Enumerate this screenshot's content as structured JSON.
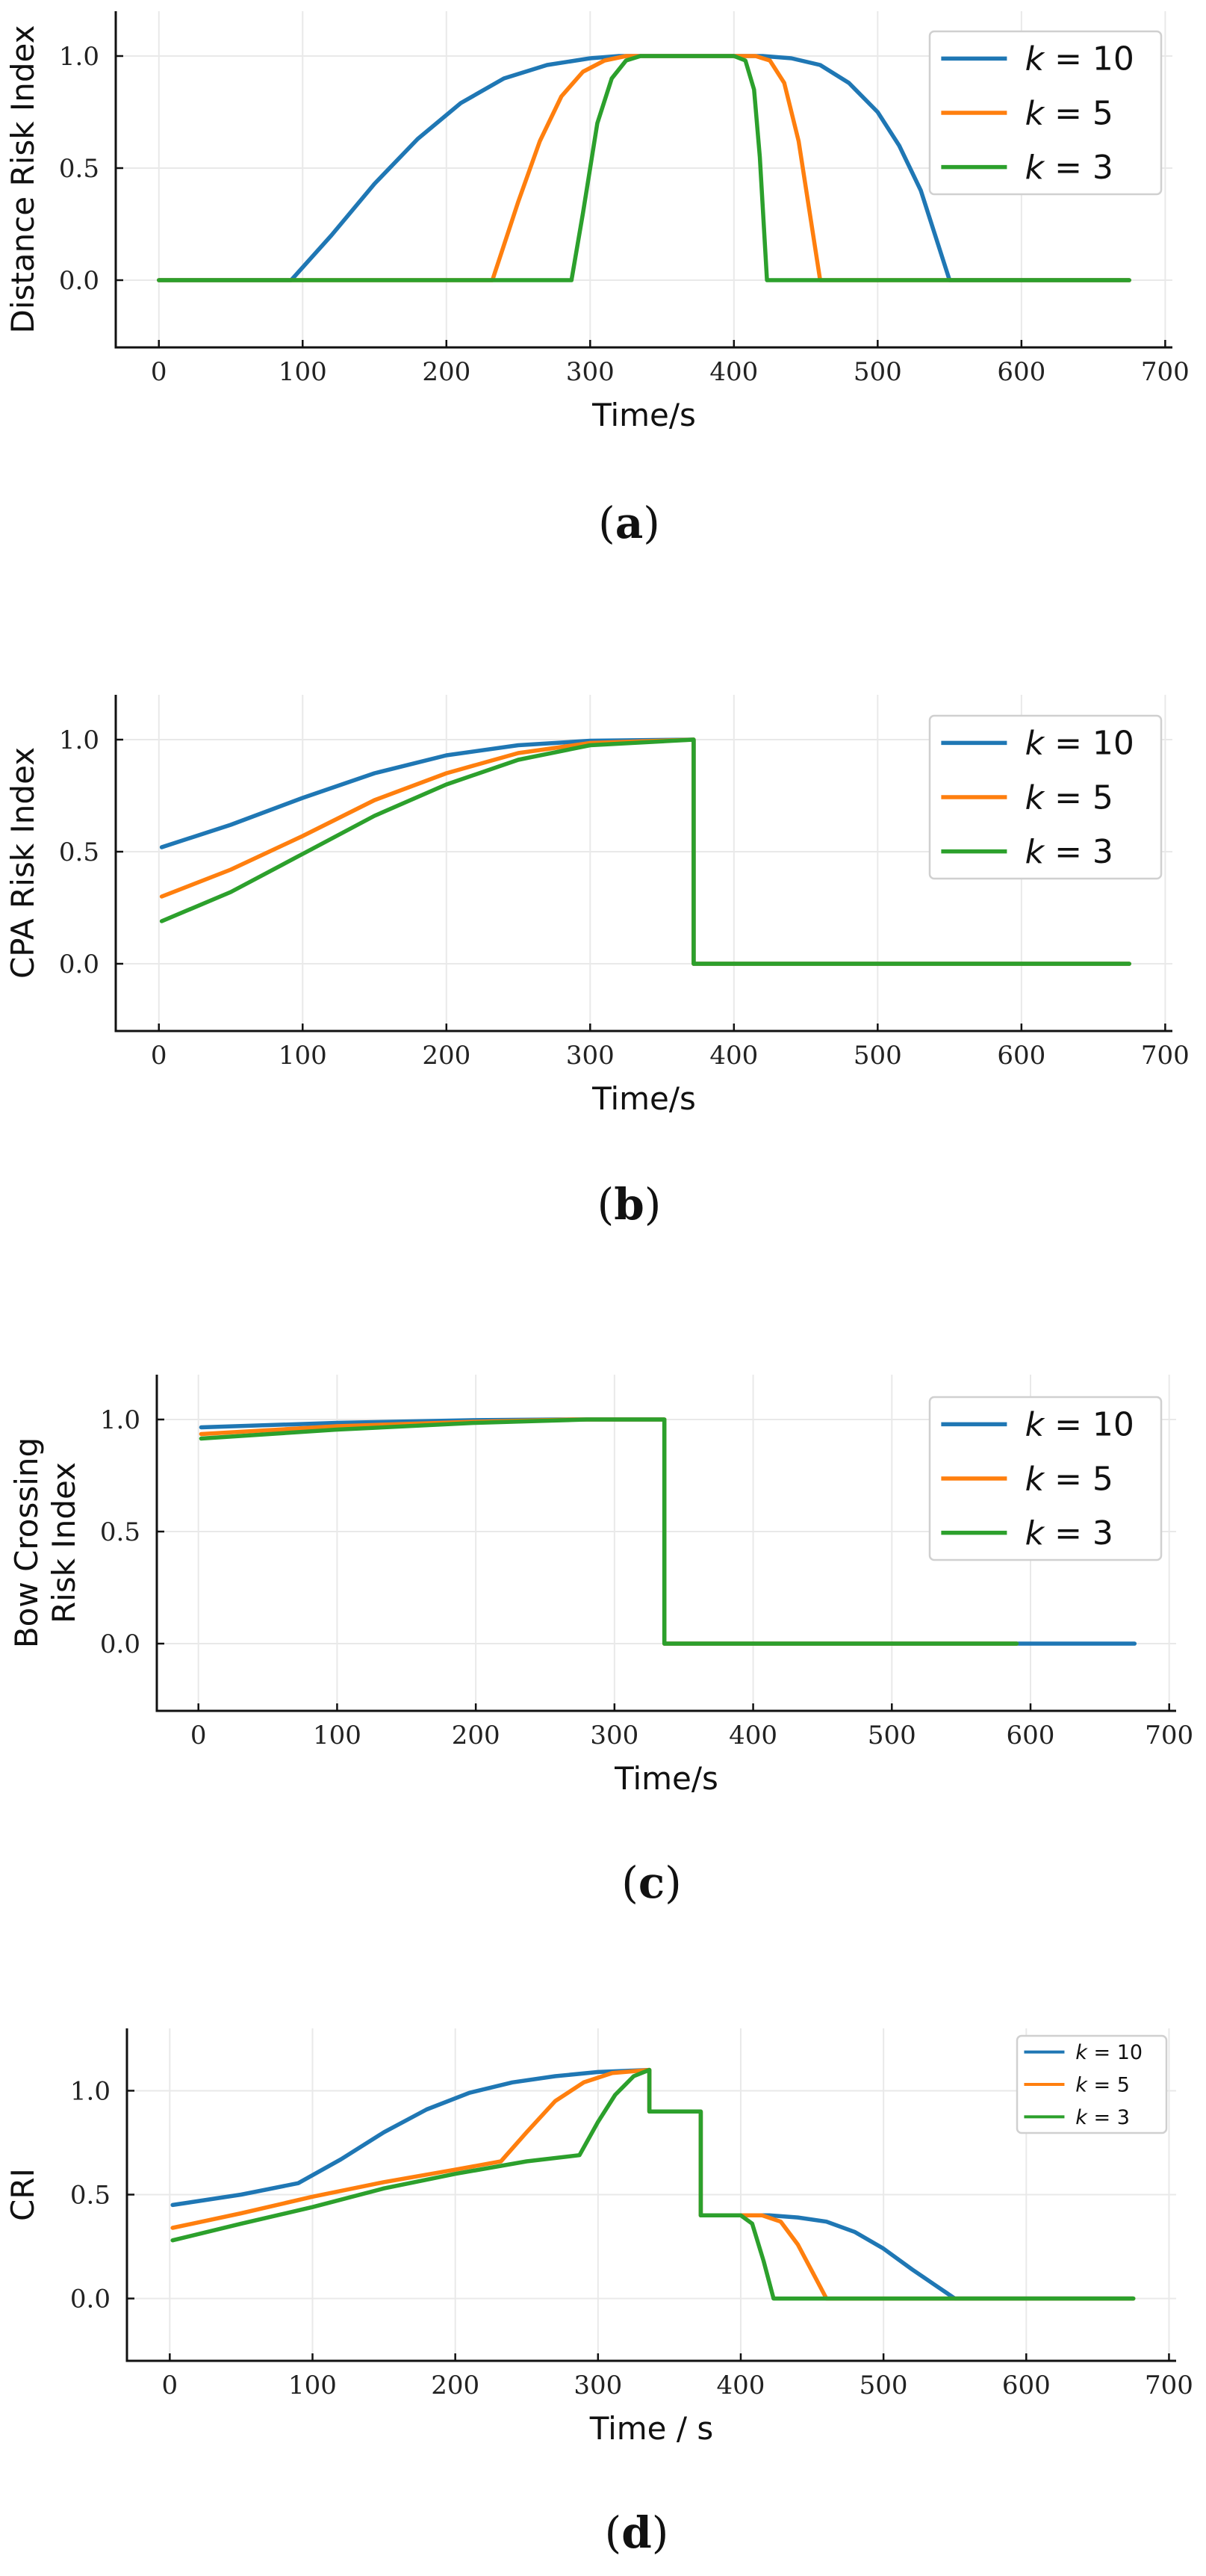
{
  "chart_data": [
    {
      "id": "a",
      "type": "line",
      "caption_letter": "a",
      "caption_open": "(",
      "caption_close": ")",
      "xlabel": "Time/s",
      "ylabel_lines": [
        "Distance Risk Index"
      ],
      "xlim": [
        -30,
        705
      ],
      "ylim": [
        -0.3,
        1.2
      ],
      "xticks": [
        0,
        100,
        200,
        300,
        400,
        500,
        600,
        700
      ],
      "yticks": [
        0.0,
        0.5,
        1.0
      ],
      "ytick_labels": [
        "0.0",
        "0.5",
        "1.0"
      ],
      "legend_position": "top-right",
      "series": [
        {
          "name": "k = 10",
          "label_k": "k",
          "label_eq": "=",
          "label_val": "10",
          "color": "#1f77b4",
          "points": [
            [
              0,
              0
            ],
            [
              92,
              0
            ],
            [
              120,
              0.2
            ],
            [
              150,
              0.43
            ],
            [
              180,
              0.63
            ],
            [
              210,
              0.79
            ],
            [
              240,
              0.9
            ],
            [
              270,
              0.96
            ],
            [
              300,
              0.99
            ],
            [
              320,
              1.0
            ],
            [
              420,
              1.0
            ],
            [
              440,
              0.99
            ],
            [
              460,
              0.96
            ],
            [
              480,
              0.88
            ],
            [
              500,
              0.75
            ],
            [
              515,
              0.6
            ],
            [
              530,
              0.4
            ],
            [
              550,
              0
            ],
            [
              675,
              0
            ]
          ]
        },
        {
          "name": "k = 5",
          "label_k": "k",
          "label_eq": "=",
          "label_val": "5",
          "color": "#ff7f0e",
          "points": [
            [
              0,
              0
            ],
            [
              232,
              0
            ],
            [
              250,
              0.35
            ],
            [
              265,
              0.62
            ],
            [
              280,
              0.82
            ],
            [
              295,
              0.93
            ],
            [
              310,
              0.98
            ],
            [
              325,
              1.0
            ],
            [
              415,
              1.0
            ],
            [
              425,
              0.98
            ],
            [
              435,
              0.88
            ],
            [
              445,
              0.62
            ],
            [
              460,
              0
            ],
            [
              675,
              0
            ]
          ]
        },
        {
          "name": "k = 3",
          "label_k": "k",
          "label_eq": "=",
          "label_val": "3",
          "color": "#2ca02c",
          "points": [
            [
              0,
              0
            ],
            [
              287,
              0
            ],
            [
              295,
              0.3
            ],
            [
              305,
              0.7
            ],
            [
              315,
              0.9
            ],
            [
              325,
              0.98
            ],
            [
              335,
              1.0
            ],
            [
              400,
              1.0
            ],
            [
              408,
              0.98
            ],
            [
              414,
              0.85
            ],
            [
              418,
              0.55
            ],
            [
              423,
              0
            ],
            [
              675,
              0
            ]
          ]
        }
      ]
    },
    {
      "id": "b",
      "type": "line",
      "caption_letter": "b",
      "caption_open": "(",
      "caption_close": ")",
      "xlabel": "Time/s",
      "ylabel_lines": [
        "CPA Risk Index"
      ],
      "xlim": [
        -30,
        705
      ],
      "ylim": [
        -0.3,
        1.2
      ],
      "xticks": [
        0,
        100,
        200,
        300,
        400,
        500,
        600,
        700
      ],
      "yticks": [
        0.0,
        0.5,
        1.0
      ],
      "ytick_labels": [
        "0.0",
        "0.5",
        "1.0"
      ],
      "legend_position": "top-right",
      "series": [
        {
          "name": "k = 10",
          "label_k": "k",
          "label_eq": "=",
          "label_val": "10",
          "color": "#1f77b4",
          "points": [
            [
              2,
              0.52
            ],
            [
              50,
              0.62
            ],
            [
              100,
              0.74
            ],
            [
              150,
              0.85
            ],
            [
              200,
              0.93
            ],
            [
              250,
              0.975
            ],
            [
              300,
              0.995
            ],
            [
              372,
              1.0
            ],
            [
              372,
              0
            ],
            [
              675,
              0
            ]
          ]
        },
        {
          "name": "k = 5",
          "label_k": "k",
          "label_eq": "=",
          "label_val": "5",
          "color": "#ff7f0e",
          "points": [
            [
              2,
              0.3
            ],
            [
              50,
              0.42
            ],
            [
              100,
              0.57
            ],
            [
              150,
              0.73
            ],
            [
              200,
              0.85
            ],
            [
              250,
              0.94
            ],
            [
              300,
              0.985
            ],
            [
              372,
              1.0
            ],
            [
              372,
              0
            ],
            [
              675,
              0
            ]
          ]
        },
        {
          "name": "k = 3",
          "label_k": "k",
          "label_eq": "=",
          "label_val": "3",
          "color": "#2ca02c",
          "points": [
            [
              2,
              0.19
            ],
            [
              50,
              0.32
            ],
            [
              100,
              0.49
            ],
            [
              150,
              0.66
            ],
            [
              200,
              0.8
            ],
            [
              250,
              0.91
            ],
            [
              300,
              0.975
            ],
            [
              372,
              1.0
            ],
            [
              372,
              0
            ],
            [
              675,
              0
            ]
          ]
        }
      ]
    },
    {
      "id": "c",
      "type": "line",
      "caption_letter": "c",
      "caption_open": "(",
      "caption_close": ")",
      "xlabel": "Time/s",
      "ylabel_lines": [
        "Bow Crossing",
        "Risk Index"
      ],
      "xlim": [
        -30,
        705
      ],
      "ylim": [
        -0.3,
        1.2
      ],
      "xticks": [
        0,
        100,
        200,
        300,
        400,
        500,
        600,
        700
      ],
      "yticks": [
        0.0,
        0.5,
        1.0
      ],
      "ytick_labels": [
        "0.0",
        "0.5",
        "1.0"
      ],
      "legend_position": "top-right",
      "series": [
        {
          "name": "k = 10",
          "label_k": "k",
          "label_eq": "=",
          "label_val": "10",
          "color": "#1f77b4",
          "points": [
            [
              2,
              0.965
            ],
            [
              100,
              0.985
            ],
            [
              200,
              0.997
            ],
            [
              260,
              1.0
            ],
            [
              336,
              1.0
            ],
            [
              336,
              0
            ],
            [
              675,
              0
            ]
          ]
        },
        {
          "name": "k = 5",
          "label_k": "k",
          "label_eq": "=",
          "label_val": "5",
          "color": "#ff7f0e",
          "points": [
            [
              2,
              0.935
            ],
            [
              100,
              0.97
            ],
            [
              200,
              0.99
            ],
            [
              270,
              1.0
            ],
            [
              336,
              1.0
            ],
            [
              336,
              0
            ],
            [
              590,
              0
            ]
          ]
        },
        {
          "name": "k = 3",
          "label_k": "k",
          "label_eq": "=",
          "label_val": "3",
          "color": "#2ca02c",
          "points": [
            [
              2,
              0.915
            ],
            [
              100,
              0.955
            ],
            [
              200,
              0.985
            ],
            [
              280,
              1.0
            ],
            [
              336,
              1.0
            ],
            [
              336,
              0
            ],
            [
              590,
              0
            ]
          ]
        }
      ]
    },
    {
      "id": "d",
      "type": "line",
      "caption_letter": "d",
      "caption_open": "(",
      "caption_close": ")",
      "xlabel": "Time / s",
      "ylabel_lines": [
        "CRI"
      ],
      "xlim": [
        -30,
        705
      ],
      "ylim": [
        -0.3,
        1.3
      ],
      "xticks": [
        0,
        100,
        200,
        300,
        400,
        500,
        600,
        700
      ],
      "yticks": [
        0.0,
        0.5,
        1.0
      ],
      "ytick_labels": [
        "0.0",
        "0.5",
        "1.0"
      ],
      "legend_position": "top-right",
      "series": [
        {
          "name": "k = 10",
          "label_k": "k",
          "label_eq": "=",
          "label_val": "10",
          "color": "#1f77b4",
          "points": [
            [
              2,
              0.45
            ],
            [
              50,
              0.5
            ],
            [
              90,
              0.555
            ],
            [
              120,
              0.67
            ],
            [
              150,
              0.8
            ],
            [
              180,
              0.91
            ],
            [
              210,
              0.99
            ],
            [
              240,
              1.04
            ],
            [
              270,
              1.07
            ],
            [
              300,
              1.09
            ],
            [
              336,
              1.1
            ],
            [
              336,
              0.9
            ],
            [
              372,
              0.9
            ],
            [
              372,
              0.4
            ],
            [
              420,
              0.4
            ],
            [
              440,
              0.39
            ],
            [
              460,
              0.37
            ],
            [
              480,
              0.32
            ],
            [
              500,
              0.24
            ],
            [
              520,
              0.14
            ],
            [
              535,
              0.07
            ],
            [
              550,
              0
            ],
            [
              675,
              0
            ]
          ]
        },
        {
          "name": "k = 5",
          "label_k": "k",
          "label_eq": "=",
          "label_val": "5",
          "color": "#ff7f0e",
          "points": [
            [
              2,
              0.34
            ],
            [
              50,
              0.41
            ],
            [
              100,
              0.49
            ],
            [
              150,
              0.56
            ],
            [
              200,
              0.62
            ],
            [
              232,
              0.66
            ],
            [
              250,
              0.8
            ],
            [
              270,
              0.95
            ],
            [
              290,
              1.04
            ],
            [
              310,
              1.085
            ],
            [
              336,
              1.1
            ],
            [
              336,
              0.9
            ],
            [
              372,
              0.9
            ],
            [
              372,
              0.4
            ],
            [
              415,
              0.4
            ],
            [
              428,
              0.37
            ],
            [
              440,
              0.26
            ],
            [
              450,
              0.13
            ],
            [
              460,
              0
            ],
            [
              675,
              0
            ]
          ]
        },
        {
          "name": "k = 3",
          "label_k": "k",
          "label_eq": "=",
          "label_val": "3",
          "color": "#2ca02c",
          "points": [
            [
              2,
              0.28
            ],
            [
              50,
              0.36
            ],
            [
              100,
              0.44
            ],
            [
              150,
              0.53
            ],
            [
              200,
              0.6
            ],
            [
              250,
              0.66
            ],
            [
              287,
              0.69
            ],
            [
              300,
              0.85
            ],
            [
              312,
              0.98
            ],
            [
              325,
              1.07
            ],
            [
              336,
              1.1
            ],
            [
              336,
              0.9
            ],
            [
              372,
              0.9
            ],
            [
              372,
              0.4
            ],
            [
              400,
              0.4
            ],
            [
              408,
              0.36
            ],
            [
              416,
              0.18
            ],
            [
              423,
              0
            ],
            [
              675,
              0
            ]
          ]
        }
      ]
    }
  ]
}
